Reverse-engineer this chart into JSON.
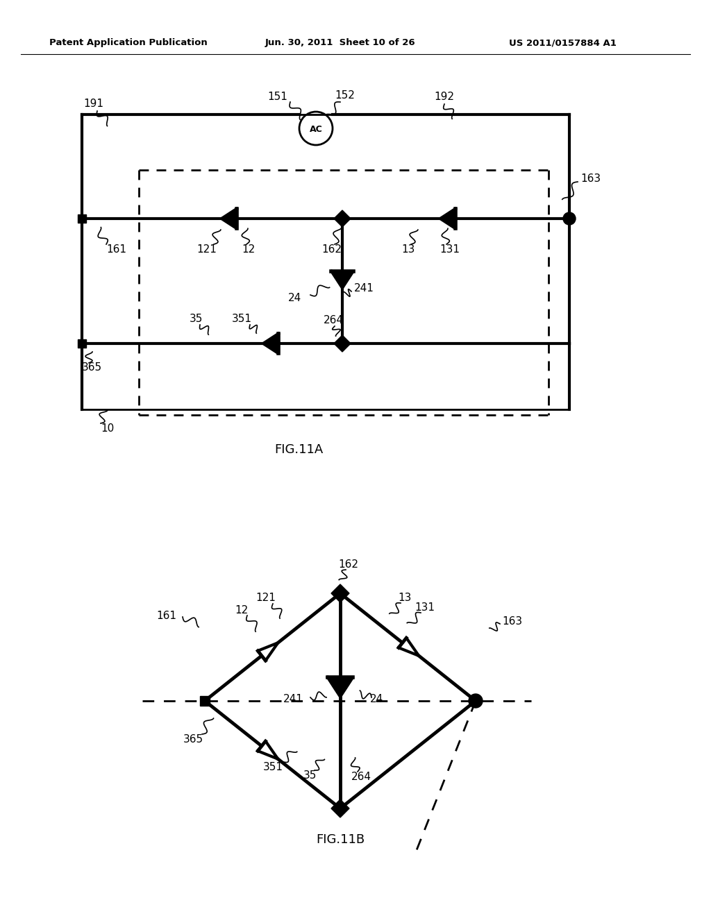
{
  "header_left": "Patent Application Publication",
  "header_mid": "Jun. 30, 2011  Sheet 10 of 26",
  "header_right": "US 2011/0157884 A1",
  "fig_a_label": "FIG.11A",
  "fig_b_label": "FIG.11B",
  "bg_color": "#ffffff",
  "line_color": "#000000"
}
